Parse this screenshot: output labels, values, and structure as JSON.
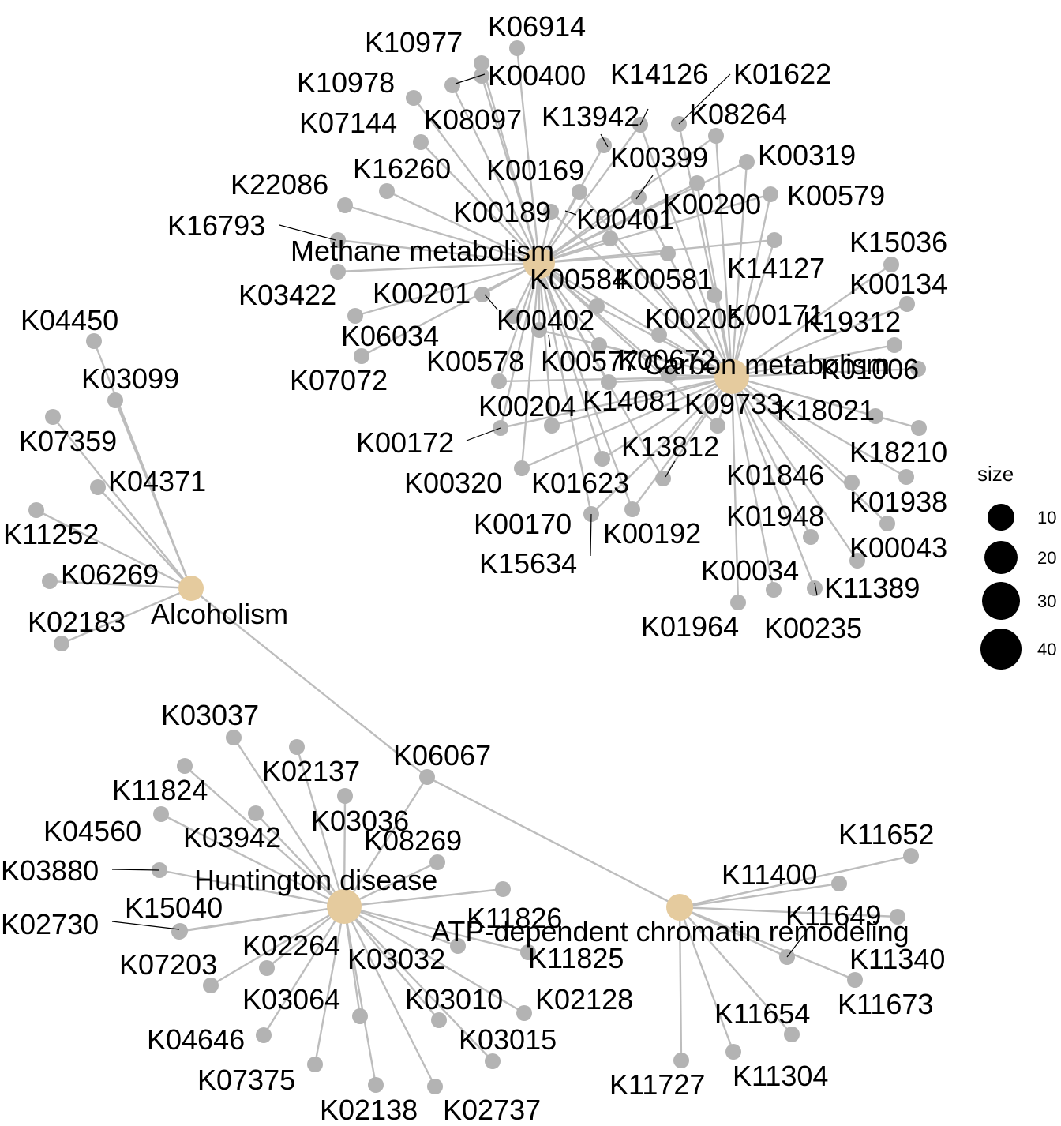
{
  "colors": {
    "edge": "#bdbdbd",
    "gene_node": "#b3b3b3",
    "pathway_node": "#e5cb9e",
    "label": "#000000",
    "legend_dot": "#000000"
  },
  "legend": {
    "title": "size",
    "items": [
      "10",
      "20",
      "30",
      "40"
    ]
  },
  "pathways": [
    {
      "id": "methane",
      "label": "Methane metabolism"
    },
    {
      "id": "carbon",
      "label": "Carbon metabolism"
    },
    {
      "id": "alcoholism",
      "label": "Alcoholism"
    },
    {
      "id": "huntington",
      "label": "Huntington disease"
    },
    {
      "id": "atp",
      "label": "ATP-dependent chromatin remodeling"
    }
  ],
  "genes": [
    {
      "label": "K10977",
      "links": [
        "methane"
      ]
    },
    {
      "label": "K06914",
      "links": [
        "methane"
      ]
    },
    {
      "label": "K10978",
      "links": [
        "methane"
      ]
    },
    {
      "label": "K00400",
      "links": [
        "methane"
      ]
    },
    {
      "label": "K14126",
      "links": [
        "methane",
        "carbon"
      ]
    },
    {
      "label": "K01622",
      "links": [
        "carbon"
      ]
    },
    {
      "label": "K07144",
      "links": [
        "methane"
      ]
    },
    {
      "label": "K08097",
      "links": [
        "methane"
      ]
    },
    {
      "label": "K13942",
      "links": [
        "methane"
      ]
    },
    {
      "label": "K08264",
      "links": [
        "methane",
        "carbon"
      ]
    },
    {
      "label": "K16260",
      "links": [
        "methane"
      ]
    },
    {
      "label": "K00169",
      "links": [
        "methane",
        "carbon"
      ]
    },
    {
      "label": "K00399",
      "links": [
        "methane",
        "carbon"
      ]
    },
    {
      "label": "K00319",
      "links": [
        "methane",
        "carbon"
      ]
    },
    {
      "label": "K22086",
      "links": [
        "methane"
      ]
    },
    {
      "label": "K00189",
      "links": [
        "methane",
        "carbon"
      ]
    },
    {
      "label": "K00401",
      "links": [
        "methane",
        "carbon"
      ]
    },
    {
      "label": "K00200",
      "links": [
        "methane",
        "carbon"
      ]
    },
    {
      "label": "K00579",
      "links": [
        "methane",
        "carbon"
      ]
    },
    {
      "label": "K16793",
      "links": [
        "methane"
      ]
    },
    {
      "label": "K15036",
      "links": [
        "carbon"
      ]
    },
    {
      "label": "K00584",
      "links": [
        "methane",
        "carbon"
      ]
    },
    {
      "label": "K00581",
      "links": [
        "methane",
        "carbon"
      ]
    },
    {
      "label": "K14127",
      "links": [
        "methane",
        "carbon"
      ]
    },
    {
      "label": "K00134",
      "links": [
        "carbon"
      ]
    },
    {
      "label": "K03422",
      "links": [
        "methane"
      ]
    },
    {
      "label": "K00201",
      "links": [
        "methane"
      ]
    },
    {
      "label": "K00402",
      "links": [
        "methane",
        "carbon"
      ]
    },
    {
      "label": "K00205",
      "links": [
        "methane",
        "carbon"
      ]
    },
    {
      "label": "K00171",
      "links": [
        "carbon"
      ]
    },
    {
      "label": "K19312",
      "links": [
        "carbon"
      ]
    },
    {
      "label": "K06034",
      "links": [
        "methane"
      ]
    },
    {
      "label": "K00578",
      "links": [
        "methane"
      ]
    },
    {
      "label": "K00577",
      "links": [
        "methane",
        "carbon"
      ]
    },
    {
      "label": "K00672",
      "links": [
        "methane",
        "carbon"
      ]
    },
    {
      "label": "K01006",
      "links": [
        "carbon"
      ]
    },
    {
      "label": "K07072",
      "links": [
        "methane"
      ]
    },
    {
      "label": "K00204",
      "links": [
        "methane",
        "carbon"
      ]
    },
    {
      "label": "K14081",
      "links": [
        "methane",
        "carbon"
      ]
    },
    {
      "label": "K09733",
      "links": [
        "methane",
        "carbon"
      ]
    },
    {
      "label": "K18021",
      "links": [
        "carbon"
      ]
    },
    {
      "label": "K00172",
      "links": [
        "methane",
        "carbon"
      ]
    },
    {
      "label": "K13812",
      "links": [
        "methane",
        "carbon"
      ]
    },
    {
      "label": "K18210",
      "links": [
        "carbon"
      ]
    },
    {
      "label": "K00320",
      "links": [
        "methane",
        "carbon"
      ]
    },
    {
      "label": "K01623",
      "links": [
        "methane",
        "carbon"
      ]
    },
    {
      "label": "K01846",
      "links": [
        "carbon"
      ]
    },
    {
      "label": "K01938",
      "links": [
        "carbon"
      ]
    },
    {
      "label": "K00170",
      "links": [
        "methane",
        "carbon"
      ]
    },
    {
      "label": "K00192",
      "links": [
        "methane",
        "carbon"
      ]
    },
    {
      "label": "K01948",
      "links": [
        "carbon"
      ]
    },
    {
      "label": "K00043",
      "links": [
        "carbon"
      ]
    },
    {
      "label": "K15634",
      "links": [
        "methane",
        "carbon"
      ]
    },
    {
      "label": "K00034",
      "links": [
        "carbon"
      ]
    },
    {
      "label": "K11389",
      "links": [
        "carbon"
      ]
    },
    {
      "label": "K01964",
      "links": [
        "carbon"
      ]
    },
    {
      "label": "K00235",
      "links": [
        "carbon"
      ]
    },
    {
      "label": "K04450",
      "links": [
        "alcoholism"
      ]
    },
    {
      "label": "K03099",
      "links": [
        "alcoholism"
      ]
    },
    {
      "label": "K07359",
      "links": [
        "alcoholism"
      ]
    },
    {
      "label": "K04371",
      "links": [
        "alcoholism"
      ]
    },
    {
      "label": "K11252",
      "links": [
        "alcoholism"
      ]
    },
    {
      "label": "K06269",
      "links": [
        "alcoholism"
      ]
    },
    {
      "label": "K02183",
      "links": [
        "alcoholism"
      ]
    },
    {
      "label": "K06067",
      "links": [
        "alcoholism",
        "huntington",
        "atp"
      ]
    },
    {
      "label": "K03037",
      "links": [
        "huntington"
      ]
    },
    {
      "label": "K02137",
      "links": [
        "huntington"
      ]
    },
    {
      "label": "K11824",
      "links": [
        "huntington"
      ]
    },
    {
      "label": "K04560",
      "links": [
        "huntington"
      ]
    },
    {
      "label": "K03036",
      "links": [
        "huntington"
      ]
    },
    {
      "label": "K03942",
      "links": [
        "huntington"
      ]
    },
    {
      "label": "K08269",
      "links": [
        "huntington"
      ]
    },
    {
      "label": "K03880",
      "links": [
        "huntington"
      ]
    },
    {
      "label": "K15040",
      "links": [
        "huntington"
      ]
    },
    {
      "label": "K11826",
      "links": [
        "huntington"
      ]
    },
    {
      "label": "K02730",
      "links": [
        "huntington"
      ]
    },
    {
      "label": "K02264",
      "links": [
        "huntington"
      ]
    },
    {
      "label": "K03032",
      "links": [
        "huntington"
      ]
    },
    {
      "label": "K11825",
      "links": [
        "huntington"
      ]
    },
    {
      "label": "K07203",
      "links": [
        "huntington"
      ]
    },
    {
      "label": "K03064",
      "links": [
        "huntington"
      ]
    },
    {
      "label": "K03010",
      "links": [
        "huntington"
      ]
    },
    {
      "label": "K02128",
      "links": [
        "huntington"
      ]
    },
    {
      "label": "K04646",
      "links": [
        "huntington"
      ]
    },
    {
      "label": "K03015",
      "links": [
        "huntington"
      ]
    },
    {
      "label": "K07375",
      "links": [
        "huntington"
      ]
    },
    {
      "label": "K02138",
      "links": [
        "huntington"
      ]
    },
    {
      "label": "K02737",
      "links": [
        "huntington"
      ]
    },
    {
      "label": "K11652",
      "links": [
        "atp"
      ]
    },
    {
      "label": "K11400",
      "links": [
        "atp"
      ]
    },
    {
      "label": "K11649",
      "links": [
        "atp"
      ]
    },
    {
      "label": "K11340",
      "links": [
        "atp"
      ]
    },
    {
      "label": "K11673",
      "links": [
        "atp"
      ]
    },
    {
      "label": "K11654",
      "links": [
        "atp"
      ]
    },
    {
      "label": "K11727",
      "links": [
        "atp"
      ]
    },
    {
      "label": "K11304",
      "links": [
        "atp"
      ]
    }
  ]
}
